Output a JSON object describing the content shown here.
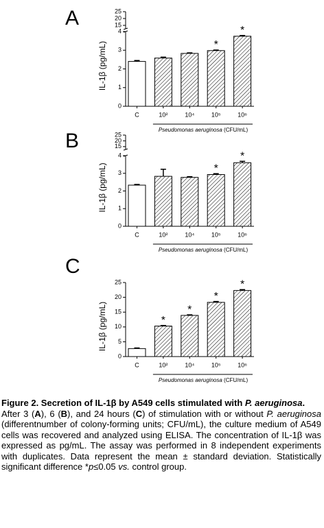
{
  "chart_data": [
    {
      "type": "bar",
      "panel": "A",
      "ylabel": "IL-1β (pg/mL)",
      "categories": [
        "C",
        "10²",
        "10⁴",
        "10⁵",
        "10⁶"
      ],
      "values": [
        2.4,
        2.58,
        2.83,
        2.98,
        3.75
      ],
      "errors": [
        0.05,
        0.05,
        0.03,
        0.03,
        0.04
      ],
      "significance": [
        null,
        null,
        null,
        "*",
        "*"
      ],
      "hatched": [
        false,
        true,
        true,
        true,
        true
      ],
      "color": "#ffffff",
      "ylim": [
        0,
        4
      ],
      "yticks": [
        0,
        1,
        2,
        3,
        4
      ],
      "y_upper_lim": [
        12.5,
        25
      ],
      "y_upper_ticks": [
        15,
        20,
        25
      ],
      "xlabel_italic": "Pseudomonas aeruginosa",
      "xlabel": "(CFU/mL)"
    },
    {
      "type": "bar",
      "panel": "B",
      "ylabel": "IL-1β (pg/mL)",
      "categories": [
        "C",
        "10²",
        "10⁴",
        "10⁵",
        "10⁶"
      ],
      "values": [
        2.33,
        2.83,
        2.77,
        2.93,
        3.6
      ],
      "errors": [
        0.04,
        0.4,
        0.04,
        0.05,
        0.08
      ],
      "significance": [
        null,
        null,
        null,
        "*",
        "*"
      ],
      "hatched": [
        false,
        true,
        true,
        true,
        true
      ],
      "color": "#ffffff",
      "ylim": [
        0,
        4
      ],
      "yticks": [
        0,
        1,
        2,
        3,
        4
      ],
      "y_upper_lim": [
        12.5,
        25
      ],
      "y_upper_ticks": [
        15,
        20,
        25
      ],
      "xlabel_italic": "Pseudomonas aeruginosa",
      "xlabel": "(CFU/mL)"
    },
    {
      "type": "bar",
      "panel": "C",
      "ylabel": "IL-1β (pg/mL)",
      "categories": [
        "C",
        "10²",
        "10⁴",
        "10⁵",
        "10⁶"
      ],
      "values": [
        2.7,
        10.3,
        13.9,
        18.3,
        22.3
      ],
      "errors": [
        0.2,
        0.2,
        0.2,
        0.3,
        0.3
      ],
      "significance": [
        null,
        "*",
        "*",
        "*",
        "*"
      ],
      "hatched": [
        false,
        true,
        true,
        true,
        true
      ],
      "color": "#ffffff",
      "ylim": [
        0,
        25
      ],
      "yticks": [
        0,
        5,
        10,
        15,
        20,
        25
      ],
      "xlabel_italic": "Pseudomonas aeruginosa",
      "xlabel": "(CFU/mL)"
    }
  ],
  "caption": {
    "title": [
      "Figure 2. Secretion of IL-1β by A549 cells stimulated with ",
      "P. aeruginosa",
      "."
    ],
    "body": [
      "After 3 (",
      "A",
      "), 6 (",
      "B",
      "), and 24 hours (",
      "C",
      ") of stimulation with or without ",
      "P. aeruginosa",
      " (differentnumber of colony-forming units; CFU/mL), the culture medium of A549 cells was recovered and analyzed using ELISA. The concentration of IL-1β was expressed as pg/mL. The assay was performed in 8 independent experiments with duplicates. Data represent the mean ± standard deviation. Statistically significant difference *",
      "p",
      "≤0.05 ",
      "vs.",
      " control group."
    ]
  }
}
